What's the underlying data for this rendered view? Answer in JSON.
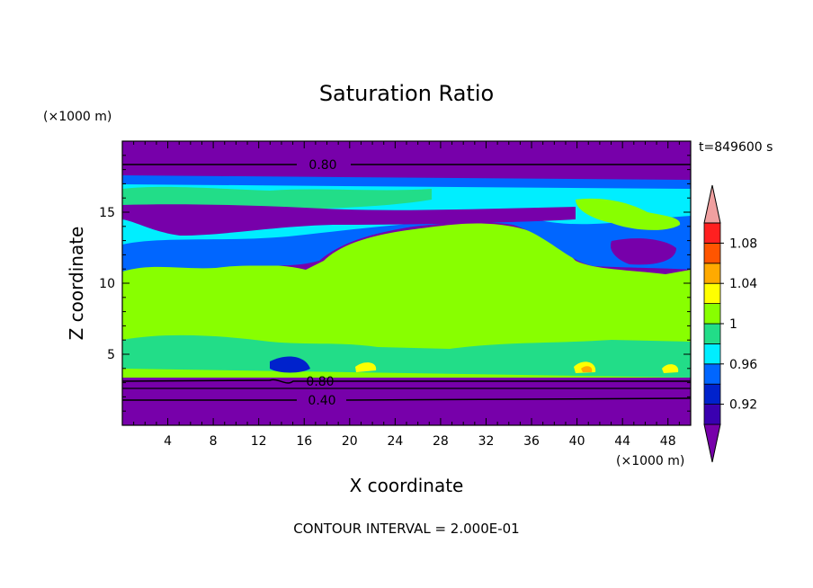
{
  "chart_data": {
    "type": "heatmap",
    "title": "Saturation Ratio",
    "xlabel": "X coordinate",
    "ylabel": "Z coordinate",
    "x_unit": "(×1000 m)",
    "y_unit": "(×1000 m)",
    "time_label": "t=849600 s",
    "footer": "CONTOUR INTERVAL = 2.000E-01",
    "xlim": [
      0,
      50
    ],
    "ylim": [
      0,
      20
    ],
    "x_ticks": [
      "4",
      "8",
      "12",
      "16",
      "20",
      "24",
      "28",
      "32",
      "36",
      "40",
      "44",
      "48"
    ],
    "y_ticks": [
      "5",
      "10",
      "15"
    ],
    "contour_labels": [
      "0.80",
      "0.80",
      "0.40"
    ],
    "colorbar": {
      "labels": [
        "1.08",
        "1.04",
        "1",
        "0.96",
        "0.92"
      ],
      "levels": [
        0.9,
        0.92,
        0.94,
        0.96,
        0.98,
        1.0,
        1.02,
        1.04,
        1.06,
        1.08,
        1.1
      ],
      "colors": [
        "#7700aa",
        "#3a00b0",
        "#0022cc",
        "#0066ff",
        "#00eeff",
        "#22dd88",
        "#88ff00",
        "#ffff00",
        "#ffaa00",
        "#ff5500",
        "#ff2020",
        "#f0a0a0"
      ]
    },
    "bands": [
      {
        "z_range": [
          0,
          3.2
        ],
        "value": "<0.90",
        "color": "#7700aa"
      },
      {
        "z_range": [
          3.2,
          14.8
        ],
        "value": "1.00-1.02",
        "color": "#88ff00"
      },
      {
        "z_range": [
          14.8,
          17.2
        ],
        "value": "mixed 0.92-1.02",
        "color": "#0066ff"
      },
      {
        "z_range": [
          17.2,
          20
        ],
        "value": "<0.90",
        "color": "#7700aa"
      }
    ]
  }
}
